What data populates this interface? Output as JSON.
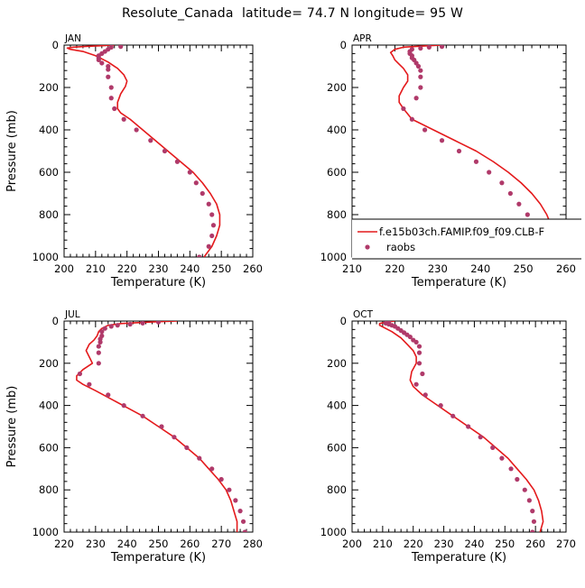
{
  "title": "Resolute_Canada  latitude= 74.7 N longitude= 95 W",
  "colors": {
    "model_line": "#e41a1c",
    "obs_marker": "#b03a6a",
    "axes": "#000000"
  },
  "legend": {
    "model_label": "f.e15b03ch.FAMIP.f09_f09.CLB-F",
    "obs_label": "raobs"
  },
  "chart_data": [
    {
      "type": "line",
      "panel_label": "JAN",
      "xlabel": "Temperature (K)",
      "ylabel": "Pressure (mb)",
      "xlim": [
        200,
        260
      ],
      "ylim": [
        0,
        1000
      ],
      "y_inverted": true,
      "xticks": [
        200,
        210,
        220,
        230,
        240,
        250,
        260
      ],
      "yticks": [
        0,
        200,
        400,
        600,
        800,
        1000
      ],
      "series": [
        {
          "name": "f.e15b03ch.FAMIP.f09_f09.CLB-F",
          "kind": "line",
          "points": [
            [
              216,
              0
            ],
            [
              212,
              3
            ],
            [
              207,
              6
            ],
            [
              203,
              10
            ],
            [
              201,
              14
            ],
            [
              202,
              20
            ],
            [
              206,
              30
            ],
            [
              210,
              50
            ],
            [
              214,
              80
            ],
            [
              217,
              110
            ],
            [
              219,
              140
            ],
            [
              220,
              170
            ],
            [
              219.5,
              195
            ],
            [
              218,
              230
            ],
            [
              217,
              270
            ],
            [
              217,
              300
            ],
            [
              218,
              320
            ],
            [
              221,
              350
            ],
            [
              225,
              400
            ],
            [
              229,
              450
            ],
            [
              233,
              500
            ],
            [
              237,
              550
            ],
            [
              241,
              600
            ],
            [
              244,
              650
            ],
            [
              246.5,
              700
            ],
            [
              248.5,
              750
            ],
            [
              249.5,
              800
            ],
            [
              249.5,
              850
            ],
            [
              248.5,
              900
            ],
            [
              247,
              950
            ],
            [
              244.5,
              1000
            ]
          ]
        },
        {
          "name": "raobs",
          "kind": "markers",
          "points": [
            [
              218,
              7
            ],
            [
              215,
              10
            ],
            [
              214,
              20
            ],
            [
              213,
              30
            ],
            [
              212,
              40
            ],
            [
              211,
              50
            ],
            [
              211,
              60
            ],
            [
              211,
              70
            ],
            [
              212,
              85
            ],
            [
              214,
              100
            ],
            [
              214,
              115
            ],
            [
              214,
              150
            ],
            [
              215,
              200
            ],
            [
              215,
              250
            ],
            [
              216,
              300
            ],
            [
              219,
              350
            ],
            [
              223,
              400
            ],
            [
              227.5,
              450
            ],
            [
              232,
              500
            ],
            [
              236,
              550
            ],
            [
              240,
              600
            ],
            [
              242,
              650
            ],
            [
              244,
              700
            ],
            [
              246,
              750
            ],
            [
              247,
              800
            ],
            [
              247.5,
              850
            ],
            [
              247,
              900
            ],
            [
              246,
              950
            ],
            [
              243,
              1000
            ]
          ]
        }
      ]
    },
    {
      "type": "line",
      "panel_label": "APR",
      "xlabel": "Temperature (K)",
      "ylabel": "",
      "xlim": [
        210,
        260
      ],
      "ylim": [
        0,
        1000
      ],
      "y_inverted": true,
      "xticks": [
        210,
        220,
        230,
        240,
        250,
        260
      ],
      "yticks": [
        0,
        200,
        400,
        600,
        800,
        1000
      ],
      "series": [
        {
          "name": "f.e15b03ch.FAMIP.f09_f09.CLB-F",
          "kind": "line",
          "points": [
            [
              231,
              0
            ],
            [
              226,
              5
            ],
            [
              222,
              10
            ],
            [
              220,
              20
            ],
            [
              219,
              35
            ],
            [
              219.5,
              50
            ],
            [
              220,
              70
            ],
            [
              221,
              90
            ],
            [
              222,
              110
            ],
            [
              223,
              140
            ],
            [
              223,
              170
            ],
            [
              222,
              200
            ],
            [
              221,
              240
            ],
            [
              221,
              270
            ],
            [
              222,
              300
            ],
            [
              224,
              350
            ],
            [
              229,
              400
            ],
            [
              234,
              450
            ],
            [
              239,
              500
            ],
            [
              243,
              550
            ],
            [
              246.5,
              600
            ],
            [
              249.5,
              650
            ],
            [
              252,
              700
            ],
            [
              254,
              750
            ],
            [
              255.5,
              800
            ],
            [
              256.5,
              850
            ],
            [
              257,
              900
            ],
            [
              256,
              950
            ],
            [
              254,
              1000
            ]
          ]
        },
        {
          "name": "raobs",
          "kind": "markers",
          "points": [
            [
              231,
              7
            ],
            [
              228,
              10
            ],
            [
              226,
              15
            ],
            [
              224,
              20
            ],
            [
              223.5,
              30
            ],
            [
              223.5,
              40
            ],
            [
              224,
              50
            ],
            [
              224,
              60
            ],
            [
              224.5,
              70
            ],
            [
              225,
              85
            ],
            [
              225.5,
              100
            ],
            [
              226,
              120
            ],
            [
              226,
              150
            ],
            [
              226,
              200
            ],
            [
              225,
              250
            ],
            [
              222,
              300
            ],
            [
              224,
              350
            ],
            [
              227,
              400
            ],
            [
              231,
              450
            ],
            [
              235,
              500
            ],
            [
              239,
              550
            ],
            [
              242,
              600
            ],
            [
              245,
              650
            ],
            [
              247,
              700
            ],
            [
              249,
              750
            ],
            [
              251,
              800
            ],
            [
              252.5,
              850
            ],
            [
              253.5,
              900
            ],
            [
              253,
              950
            ],
            [
              251,
              1000
            ]
          ]
        }
      ]
    },
    {
      "type": "line",
      "panel_label": "JUL",
      "xlabel": "Temperature (K)",
      "ylabel": "Pressure (mb)",
      "xlim": [
        220,
        280
      ],
      "ylim": [
        0,
        1000
      ],
      "y_inverted": true,
      "xticks": [
        220,
        230,
        240,
        250,
        260,
        270,
        280
      ],
      "yticks": [
        0,
        200,
        400,
        600,
        800,
        1000
      ],
      "series": [
        {
          "name": "f.e15b03ch.FAMIP.f09_f09.CLB-F",
          "kind": "line",
          "points": [
            [
              256,
              0
            ],
            [
              250,
              3
            ],
            [
              244,
              7
            ],
            [
              238,
              12
            ],
            [
              234,
              20
            ],
            [
              232,
              35
            ],
            [
              231,
              50
            ],
            [
              230.5,
              70
            ],
            [
              229.5,
              90
            ],
            [
              228,
              110
            ],
            [
              227,
              140
            ],
            [
              228,
              170
            ],
            [
              229,
              200
            ],
            [
              226,
              230
            ],
            [
              224,
              260
            ],
            [
              224,
              280
            ],
            [
              226,
              300
            ],
            [
              230,
              330
            ],
            [
              235,
              370
            ],
            [
              240,
              410
            ],
            [
              245,
              450
            ],
            [
              250,
              500
            ],
            [
              255,
              550
            ],
            [
              259,
              600
            ],
            [
              263,
              650
            ],
            [
              266,
              700
            ],
            [
              269,
              750
            ],
            [
              271.5,
              800
            ],
            [
              273,
              850
            ],
            [
              274,
              900
            ],
            [
              275,
              950
            ],
            [
              275,
              1000
            ]
          ]
        },
        {
          "name": "raobs",
          "kind": "markers",
          "points": [
            [
              250,
              5
            ],
            [
              245,
              10
            ],
            [
              241,
              15
            ],
            [
              237,
              20
            ],
            [
              235,
              25
            ],
            [
              233,
              35
            ],
            [
              232,
              50
            ],
            [
              232,
              70
            ],
            [
              231.5,
              85
            ],
            [
              231.5,
              100
            ],
            [
              231,
              120
            ],
            [
              231,
              150
            ],
            [
              231,
              200
            ],
            [
              225,
              250
            ],
            [
              228,
              300
            ],
            [
              234,
              350
            ],
            [
              239,
              400
            ],
            [
              245,
              450
            ],
            [
              251,
              500
            ],
            [
              255,
              550
            ],
            [
              259,
              600
            ],
            [
              263,
              650
            ],
            [
              267,
              700
            ],
            [
              270,
              750
            ],
            [
              272.5,
              800
            ],
            [
              274.5,
              850
            ],
            [
              276,
              900
            ],
            [
              277,
              950
            ],
            [
              277.5,
              1000
            ]
          ]
        }
      ]
    },
    {
      "type": "line",
      "panel_label": "OCT",
      "xlabel": "Temperature (K)",
      "ylabel": "",
      "xlim": [
        200,
        270
      ],
      "ylim": [
        0,
        1000
      ],
      "y_inverted": true,
      "xticks": [
        200,
        210,
        220,
        230,
        240,
        250,
        260,
        270
      ],
      "yticks": [
        0,
        200,
        400,
        600,
        800,
        1000
      ],
      "series": [
        {
          "name": "f.e15b03ch.FAMIP.f09_f09.CLB-F",
          "kind": "line",
          "points": [
            [
              214,
              0
            ],
            [
              211,
              5
            ],
            [
              209,
              12
            ],
            [
              209,
              20
            ],
            [
              211,
              35
            ],
            [
              213,
              50
            ],
            [
              216,
              80
            ],
            [
              218,
              110
            ],
            [
              220,
              140
            ],
            [
              221,
              170
            ],
            [
              221,
              200
            ],
            [
              219.5,
              240
            ],
            [
              219,
              280
            ],
            [
              220,
              310
            ],
            [
              223,
              350
            ],
            [
              228,
              400
            ],
            [
              233,
              450
            ],
            [
              238,
              500
            ],
            [
              243,
              550
            ],
            [
              247,
              600
            ],
            [
              251,
              650
            ],
            [
              254,
              700
            ],
            [
              257,
              750
            ],
            [
              259.5,
              800
            ],
            [
              261,
              850
            ],
            [
              262,
              900
            ],
            [
              262.5,
              950
            ],
            [
              261.5,
              1000
            ]
          ]
        },
        {
          "name": "raobs",
          "kind": "markers",
          "points": [
            [
              212,
              5
            ],
            [
              211,
              10
            ],
            [
              212,
              15
            ],
            [
              213,
              20
            ],
            [
              214,
              25
            ],
            [
              215,
              35
            ],
            [
              216,
              45
            ],
            [
              217,
              55
            ],
            [
              218,
              65
            ],
            [
              219,
              75
            ],
            [
              220,
              90
            ],
            [
              221,
              100
            ],
            [
              222,
              120
            ],
            [
              222,
              150
            ],
            [
              222,
              200
            ],
            [
              223,
              250
            ],
            [
              221,
              300
            ],
            [
              224,
              350
            ],
            [
              229,
              400
            ],
            [
              233,
              450
            ],
            [
              238,
              500
            ],
            [
              242,
              550
            ],
            [
              246,
              600
            ],
            [
              249,
              650
            ],
            [
              252,
              700
            ],
            [
              254,
              750
            ],
            [
              256.5,
              800
            ],
            [
              258,
              850
            ],
            [
              259,
              900
            ],
            [
              259.5,
              950
            ],
            [
              259,
              1000
            ]
          ]
        }
      ]
    }
  ]
}
